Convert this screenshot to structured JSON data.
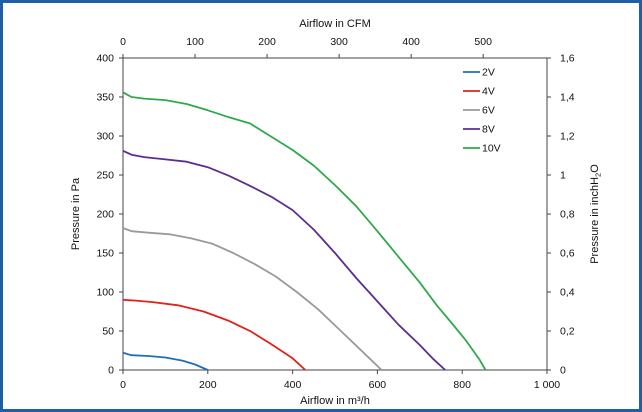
{
  "chart_data": {
    "type": "line",
    "title": "",
    "xlabel": "Airflow in m³/h",
    "x2label": "Airflow in CFM",
    "ylabel": "Pressure in Pa",
    "y2label_parts": [
      "Pressure in inchH",
      "2",
      "O"
    ],
    "xlim": [
      0,
      1000
    ],
    "ylim": [
      0,
      400
    ],
    "x2lim": [
      0,
      588.6
    ],
    "y2lim": [
      0,
      1.6
    ],
    "x_ticks": [
      0,
      200,
      400,
      600,
      800,
      1000
    ],
    "x_tick_labels": [
      "0",
      "200",
      "400",
      "600",
      "800",
      "1 000"
    ],
    "y_ticks": [
      0,
      50,
      100,
      150,
      200,
      250,
      300,
      350,
      400
    ],
    "y_tick_labels": [
      "0",
      "50",
      "100",
      "150",
      "200",
      "250",
      "300",
      "350",
      "400"
    ],
    "x2_ticks": [
      0,
      100,
      200,
      300,
      400,
      500
    ],
    "x2_tick_labels": [
      "0",
      "100",
      "200",
      "300",
      "400",
      "500"
    ],
    "y2_ticks": [
      0,
      0.2,
      0.4,
      0.6,
      0.8,
      1,
      1.2,
      1.4,
      1.6
    ],
    "y2_tick_labels": [
      "0",
      "0,2",
      "0,4",
      "0,6",
      "0,8",
      "1",
      "1,2",
      "1,4",
      "1,6"
    ],
    "grid": false,
    "legend_position": "top-right",
    "series": [
      {
        "name": "2V",
        "color": "#1f6fb4",
        "points": [
          [
            0,
            22
          ],
          [
            20,
            19
          ],
          [
            60,
            18
          ],
          [
            100,
            16
          ],
          [
            140,
            12
          ],
          [
            170,
            7
          ],
          [
            200,
            0
          ]
        ]
      },
      {
        "name": "4V",
        "color": "#e0221b",
        "points": [
          [
            0,
            90
          ],
          [
            30,
            89
          ],
          [
            70,
            87
          ],
          [
            130,
            83
          ],
          [
            190,
            75
          ],
          [
            250,
            63
          ],
          [
            300,
            50
          ],
          [
            350,
            33
          ],
          [
            400,
            15
          ],
          [
            430,
            0
          ]
        ]
      },
      {
        "name": "6V",
        "color": "#9a9a9a",
        "points": [
          [
            0,
            182
          ],
          [
            20,
            178
          ],
          [
            60,
            176
          ],
          [
            110,
            174
          ],
          [
            160,
            169
          ],
          [
            210,
            162
          ],
          [
            260,
            150
          ],
          [
            310,
            136
          ],
          [
            360,
            120
          ],
          [
            410,
            100
          ],
          [
            460,
            78
          ],
          [
            510,
            52
          ],
          [
            560,
            26
          ],
          [
            610,
            0
          ]
        ]
      },
      {
        "name": "8V",
        "color": "#5b2d90",
        "points": [
          [
            0,
            281
          ],
          [
            20,
            276
          ],
          [
            50,
            273
          ],
          [
            100,
            270
          ],
          [
            150,
            267
          ],
          [
            200,
            260
          ],
          [
            250,
            249
          ],
          [
            300,
            236
          ],
          [
            350,
            222
          ],
          [
            400,
            205
          ],
          [
            450,
            180
          ],
          [
            500,
            150
          ],
          [
            550,
            118
          ],
          [
            600,
            88
          ],
          [
            650,
            58
          ],
          [
            700,
            32
          ],
          [
            730,
            15
          ],
          [
            760,
            0
          ]
        ]
      },
      {
        "name": "10V",
        "color": "#2eaa4a",
        "points": [
          [
            0,
            356
          ],
          [
            20,
            350
          ],
          [
            50,
            348
          ],
          [
            100,
            346
          ],
          [
            150,
            341
          ],
          [
            200,
            333
          ],
          [
            250,
            324
          ],
          [
            300,
            316
          ],
          [
            350,
            299
          ],
          [
            400,
            282
          ],
          [
            450,
            262
          ],
          [
            500,
            237
          ],
          [
            550,
            210
          ],
          [
            600,
            178
          ],
          [
            650,
            145
          ],
          [
            700,
            112
          ],
          [
            740,
            83
          ],
          [
            780,
            57
          ],
          [
            810,
            37
          ],
          [
            840,
            14
          ],
          [
            855,
            0
          ]
        ]
      }
    ]
  }
}
